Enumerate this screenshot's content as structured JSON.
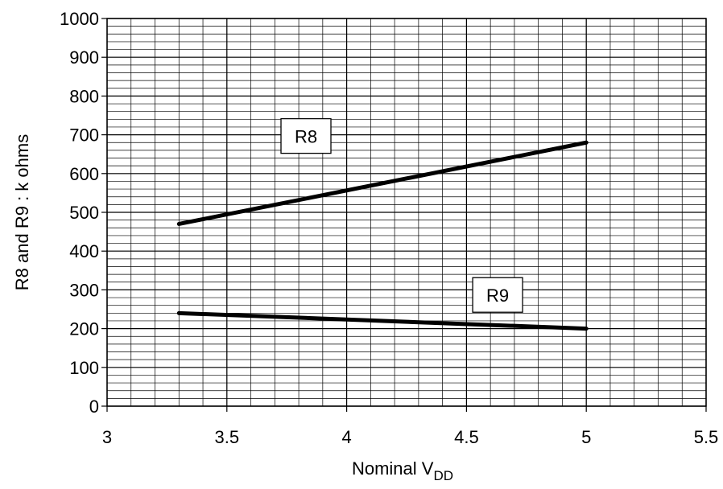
{
  "chart_data": {
    "type": "line",
    "xlabel_main": "Nominal V",
    "xlabel_sub": "DD",
    "ylabel": "R8 and R9 : k ohms",
    "xlim": [
      3,
      5.5
    ],
    "ylim": [
      0,
      1000
    ],
    "x_ticks": [
      "3",
      "3.5",
      "4",
      "4.5",
      "5",
      "5.5"
    ],
    "y_ticks": [
      "0",
      "100",
      "200",
      "300",
      "400",
      "500",
      "600",
      "700",
      "800",
      "900",
      "1000"
    ],
    "grid": true,
    "series": [
      {
        "name": "R8",
        "x": [
          3.3,
          5
        ],
        "y": [
          470,
          680
        ]
      },
      {
        "name": "R9",
        "x": [
          3.3,
          5
        ],
        "y": [
          240,
          200
        ]
      }
    ]
  }
}
